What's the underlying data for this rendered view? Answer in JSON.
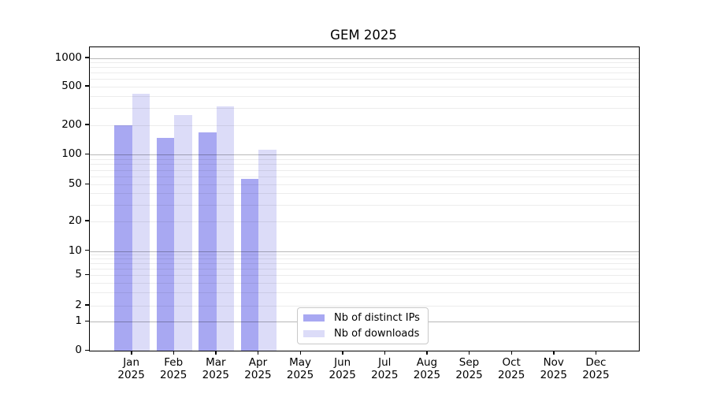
{
  "chart_data": {
    "type": "bar",
    "title": "GEM 2025",
    "categories": [
      "Jan 2025",
      "Feb 2025",
      "Mar 2025",
      "Apr 2025",
      "May 2025",
      "Jun 2025",
      "Jul 2025",
      "Aug 2025",
      "Sep 2025",
      "Oct 2025",
      "Nov 2025",
      "Dec 2025"
    ],
    "series": [
      {
        "name": "Nb of distinct IPs",
        "color": "#a8a8f2",
        "values": [
          200,
          148,
          168,
          57,
          null,
          null,
          null,
          null,
          null,
          null,
          null,
          null
        ]
      },
      {
        "name": "Nb of downloads",
        "color": "#dcdcf8",
        "values": [
          420,
          254,
          315,
          113,
          null,
          null,
          null,
          null,
          null,
          null,
          null,
          null
        ]
      }
    ],
    "xlabel": "",
    "ylabel": "",
    "yaxis": {
      "scale": "symlog",
      "ticks": [
        0,
        1,
        2,
        5,
        10,
        20,
        50,
        100,
        200,
        500,
        1000
      ],
      "ylim": [
        0,
        1270
      ],
      "grid": true,
      "grid_major_at": [
        1,
        10,
        100,
        1000
      ]
    },
    "legend": {
      "position": "bottom-center",
      "entries": [
        "Nb of distinct IPs",
        "Nb of downloads"
      ]
    }
  }
}
